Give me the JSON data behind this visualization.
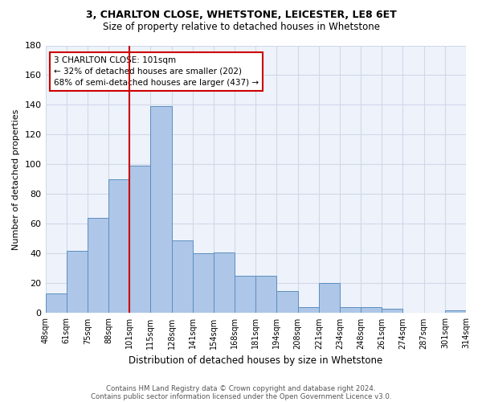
{
  "title1": "3, CHARLTON CLOSE, WHETSTONE, LEICESTER, LE8 6ET",
  "title2": "Size of property relative to detached houses in Whetstone",
  "xlabel": "Distribution of detached houses by size in Whetstone",
  "ylabel": "Number of detached properties",
  "bar_values": [
    13,
    42,
    64,
    90,
    99,
    139,
    49,
    40,
    41,
    25,
    25,
    15,
    4,
    20,
    4,
    4,
    3,
    0,
    0,
    2
  ],
  "categories": [
    "48sqm",
    "61sqm",
    "75sqm",
    "88sqm",
    "101sqm",
    "115sqm",
    "128sqm",
    "141sqm",
    "154sqm",
    "168sqm",
    "181sqm",
    "194sqm",
    "208sqm",
    "221sqm",
    "234sqm",
    "248sqm",
    "261sqm",
    "274sqm",
    "287sqm",
    "301sqm",
    "314sqm"
  ],
  "bar_color": "#aec6e8",
  "bar_edge_color": "#5a8fc0",
  "grid_color": "#d0d8e8",
  "background_color": "#eef2fa",
  "vline_color": "#cc0000",
  "annotation_text": "3 CHARLTON CLOSE: 101sqm\n← 32% of detached houses are smaller (202)\n68% of semi-detached houses are larger (437) →",
  "annotation_box_color": "#ffffff",
  "annotation_box_edge": "#cc0000",
  "ylim": [
    0,
    180
  ],
  "yticks": [
    0,
    20,
    40,
    60,
    80,
    100,
    120,
    140,
    160,
    180
  ],
  "footer1": "Contains HM Land Registry data © Crown copyright and database right 2024.",
  "footer2": "Contains public sector information licensed under the Open Government Licence v3.0."
}
